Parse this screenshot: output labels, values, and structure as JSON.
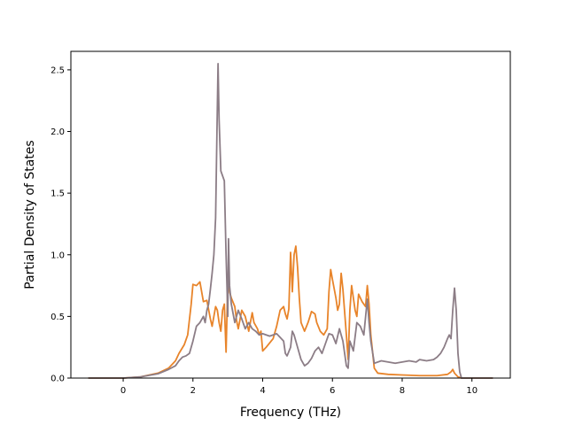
{
  "chart_data": {
    "type": "line",
    "title": "",
    "xlabel": "Frequency (THz)",
    "ylabel": "Partial Density of States",
    "xlim": [
      -1.5,
      11.1
    ],
    "ylim": [
      0.0,
      2.65
    ],
    "xticks": [
      0,
      2,
      4,
      6,
      8,
      10
    ],
    "xtick_labels": [
      "0",
      "2",
      "4",
      "6",
      "8",
      "10"
    ],
    "yticks": [
      0.0,
      0.5,
      1.0,
      1.5,
      2.0,
      2.5
    ],
    "ytick_labels": [
      "0.0",
      "0.5",
      "1.0",
      "1.5",
      "2.0",
      "2.5"
    ],
    "grid": false,
    "legend": "none",
    "series": [
      {
        "color": "#e8842a",
        "points": [
          [
            -1.0,
            0.0
          ],
          [
            0.0,
            0.0
          ],
          [
            0.5,
            0.01
          ],
          [
            1.0,
            0.04
          ],
          [
            1.3,
            0.08
          ],
          [
            1.5,
            0.14
          ],
          [
            1.6,
            0.2
          ],
          [
            1.75,
            0.27
          ],
          [
            1.85,
            0.35
          ],
          [
            1.95,
            0.6
          ],
          [
            2.0,
            0.76
          ],
          [
            2.1,
            0.75
          ],
          [
            2.2,
            0.78
          ],
          [
            2.3,
            0.62
          ],
          [
            2.4,
            0.63
          ],
          [
            2.5,
            0.48
          ],
          [
            2.55,
            0.42
          ],
          [
            2.6,
            0.5
          ],
          [
            2.65,
            0.58
          ],
          [
            2.7,
            0.55
          ],
          [
            2.75,
            0.45
          ],
          [
            2.8,
            0.38
          ],
          [
            2.85,
            0.55
          ],
          [
            2.9,
            0.6
          ],
          [
            2.95,
            0.21
          ],
          [
            3.0,
            0.78
          ],
          [
            3.05,
            0.7
          ],
          [
            3.1,
            0.65
          ],
          [
            3.2,
            0.58
          ],
          [
            3.25,
            0.47
          ],
          [
            3.3,
            0.4
          ],
          [
            3.4,
            0.55
          ],
          [
            3.5,
            0.5
          ],
          [
            3.6,
            0.38
          ],
          [
            3.7,
            0.53
          ],
          [
            3.75,
            0.45
          ],
          [
            3.85,
            0.4
          ],
          [
            3.9,
            0.35
          ],
          [
            3.95,
            0.38
          ],
          [
            4.0,
            0.22
          ],
          [
            4.1,
            0.25
          ],
          [
            4.3,
            0.32
          ],
          [
            4.4,
            0.42
          ],
          [
            4.5,
            0.55
          ],
          [
            4.6,
            0.58
          ],
          [
            4.65,
            0.52
          ],
          [
            4.7,
            0.48
          ],
          [
            4.75,
            0.56
          ],
          [
            4.8,
            1.02
          ],
          [
            4.85,
            0.7
          ],
          [
            4.9,
            1.0
          ],
          [
            4.95,
            1.07
          ],
          [
            5.0,
            0.9
          ],
          [
            5.05,
            0.65
          ],
          [
            5.1,
            0.45
          ],
          [
            5.2,
            0.38
          ],
          [
            5.3,
            0.45
          ],
          [
            5.4,
            0.54
          ],
          [
            5.5,
            0.52
          ],
          [
            5.55,
            0.45
          ],
          [
            5.65,
            0.38
          ],
          [
            5.75,
            0.35
          ],
          [
            5.85,
            0.4
          ],
          [
            5.9,
            0.7
          ],
          [
            5.95,
            0.88
          ],
          [
            6.0,
            0.8
          ],
          [
            6.1,
            0.65
          ],
          [
            6.15,
            0.55
          ],
          [
            6.2,
            0.6
          ],
          [
            6.25,
            0.85
          ],
          [
            6.3,
            0.72
          ],
          [
            6.4,
            0.35
          ],
          [
            6.45,
            0.15
          ],
          [
            6.5,
            0.55
          ],
          [
            6.55,
            0.75
          ],
          [
            6.6,
            0.65
          ],
          [
            6.65,
            0.55
          ],
          [
            6.7,
            0.5
          ],
          [
            6.75,
            0.68
          ],
          [
            6.85,
            0.62
          ],
          [
            6.95,
            0.58
          ],
          [
            7.0,
            0.75
          ],
          [
            7.05,
            0.6
          ],
          [
            7.1,
            0.35
          ],
          [
            7.2,
            0.08
          ],
          [
            7.3,
            0.04
          ],
          [
            7.6,
            0.03
          ],
          [
            8.0,
            0.025
          ],
          [
            8.5,
            0.02
          ],
          [
            9.0,
            0.02
          ],
          [
            9.3,
            0.03
          ],
          [
            9.4,
            0.05
          ],
          [
            9.45,
            0.07
          ],
          [
            9.5,
            0.04
          ],
          [
            9.6,
            0.01
          ],
          [
            9.7,
            0.0
          ],
          [
            10.0,
            0.0
          ],
          [
            10.6,
            0.0
          ]
        ]
      },
      {
        "color": "#8c7d86",
        "points": [
          [
            -1.0,
            0.0
          ],
          [
            0.0,
            0.0
          ],
          [
            0.5,
            0.01
          ],
          [
            1.0,
            0.035
          ],
          [
            1.3,
            0.07
          ],
          [
            1.5,
            0.1
          ],
          [
            1.6,
            0.14
          ],
          [
            1.7,
            0.17
          ],
          [
            1.8,
            0.18
          ],
          [
            1.9,
            0.2
          ],
          [
            2.0,
            0.3
          ],
          [
            2.1,
            0.42
          ],
          [
            2.2,
            0.45
          ],
          [
            2.3,
            0.5
          ],
          [
            2.35,
            0.45
          ],
          [
            2.4,
            0.55
          ],
          [
            2.45,
            0.6
          ],
          [
            2.5,
            0.72
          ],
          [
            2.55,
            0.85
          ],
          [
            2.6,
            1.0
          ],
          [
            2.65,
            1.3
          ],
          [
            2.7,
            2.2
          ],
          [
            2.72,
            2.55
          ],
          [
            2.75,
            2.1
          ],
          [
            2.8,
            1.68
          ],
          [
            2.9,
            1.6
          ],
          [
            2.95,
            1.0
          ],
          [
            3.0,
            0.5
          ],
          [
            3.02,
            1.13
          ],
          [
            3.05,
            0.75
          ],
          [
            3.1,
            0.6
          ],
          [
            3.2,
            0.45
          ],
          [
            3.3,
            0.55
          ],
          [
            3.4,
            0.48
          ],
          [
            3.5,
            0.4
          ],
          [
            3.6,
            0.45
          ],
          [
            3.7,
            0.4
          ],
          [
            3.8,
            0.38
          ],
          [
            3.9,
            0.35
          ],
          [
            4.0,
            0.36
          ],
          [
            4.2,
            0.34
          ],
          [
            4.4,
            0.36
          ],
          [
            4.5,
            0.33
          ],
          [
            4.6,
            0.3
          ],
          [
            4.65,
            0.2
          ],
          [
            4.7,
            0.18
          ],
          [
            4.8,
            0.25
          ],
          [
            4.85,
            0.38
          ],
          [
            4.9,
            0.35
          ],
          [
            5.0,
            0.25
          ],
          [
            5.1,
            0.15
          ],
          [
            5.2,
            0.1
          ],
          [
            5.3,
            0.12
          ],
          [
            5.4,
            0.16
          ],
          [
            5.5,
            0.22
          ],
          [
            5.6,
            0.25
          ],
          [
            5.7,
            0.2
          ],
          [
            5.8,
            0.28
          ],
          [
            5.9,
            0.36
          ],
          [
            6.0,
            0.35
          ],
          [
            6.1,
            0.28
          ],
          [
            6.2,
            0.4
          ],
          [
            6.3,
            0.3
          ],
          [
            6.4,
            0.1
          ],
          [
            6.45,
            0.08
          ],
          [
            6.5,
            0.3
          ],
          [
            6.6,
            0.22
          ],
          [
            6.7,
            0.45
          ],
          [
            6.8,
            0.42
          ],
          [
            6.9,
            0.35
          ],
          [
            7.0,
            0.64
          ],
          [
            7.05,
            0.45
          ],
          [
            7.1,
            0.3
          ],
          [
            7.2,
            0.12
          ],
          [
            7.4,
            0.14
          ],
          [
            7.6,
            0.13
          ],
          [
            7.8,
            0.12
          ],
          [
            8.0,
            0.13
          ],
          [
            8.2,
            0.14
          ],
          [
            8.4,
            0.13
          ],
          [
            8.5,
            0.15
          ],
          [
            8.7,
            0.14
          ],
          [
            8.9,
            0.15
          ],
          [
            9.0,
            0.17
          ],
          [
            9.1,
            0.2
          ],
          [
            9.2,
            0.25
          ],
          [
            9.3,
            0.32
          ],
          [
            9.35,
            0.35
          ],
          [
            9.4,
            0.32
          ],
          [
            9.45,
            0.55
          ],
          [
            9.5,
            0.73
          ],
          [
            9.55,
            0.55
          ],
          [
            9.6,
            0.2
          ],
          [
            9.65,
            0.05
          ],
          [
            9.7,
            0.0
          ],
          [
            10.0,
            0.0
          ],
          [
            10.6,
            0.0
          ]
        ]
      }
    ]
  }
}
